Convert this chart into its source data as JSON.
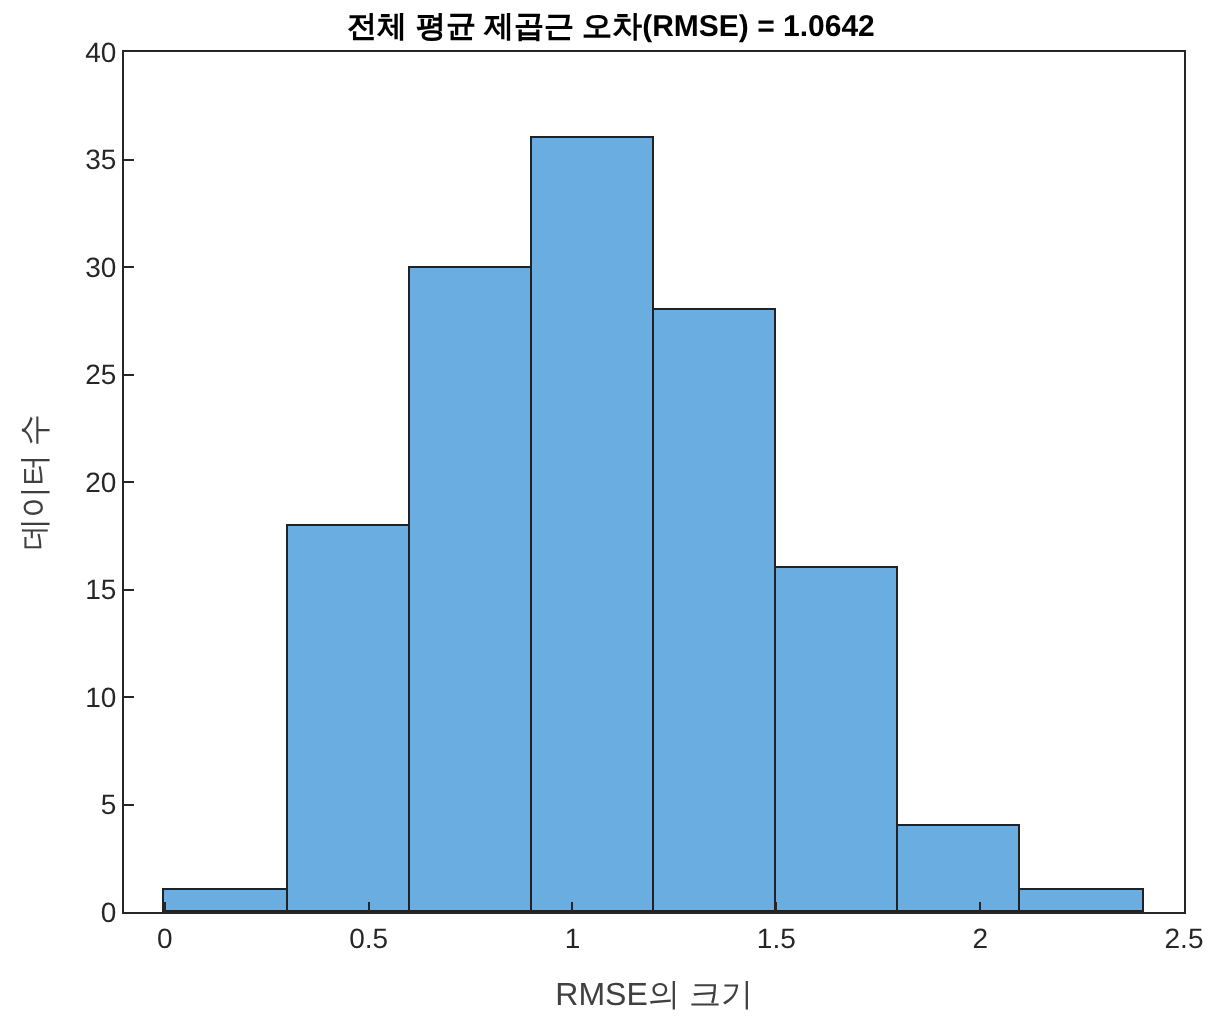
{
  "chart_data": {
    "type": "histogram",
    "title": "전체 평균 제곱근 오차(RMSE) = 1.0642",
    "xlabel": "RMSE의 크기",
    "ylabel": "데이터 수",
    "bins": [
      0,
      0.3,
      0.6,
      0.9,
      1.2,
      1.5,
      1.8,
      2.1,
      2.4
    ],
    "values": [
      1,
      18,
      30,
      36,
      28,
      16,
      4,
      1
    ],
    "color": "#6aade0",
    "xlim": [
      -0.1,
      2.5
    ],
    "xticks": [
      0,
      0.5,
      1,
      1.5,
      2,
      2.5
    ],
    "ylim": [
      0,
      40
    ],
    "yticks": [
      0,
      5,
      10,
      15,
      20,
      25,
      30,
      35,
      40
    ]
  }
}
